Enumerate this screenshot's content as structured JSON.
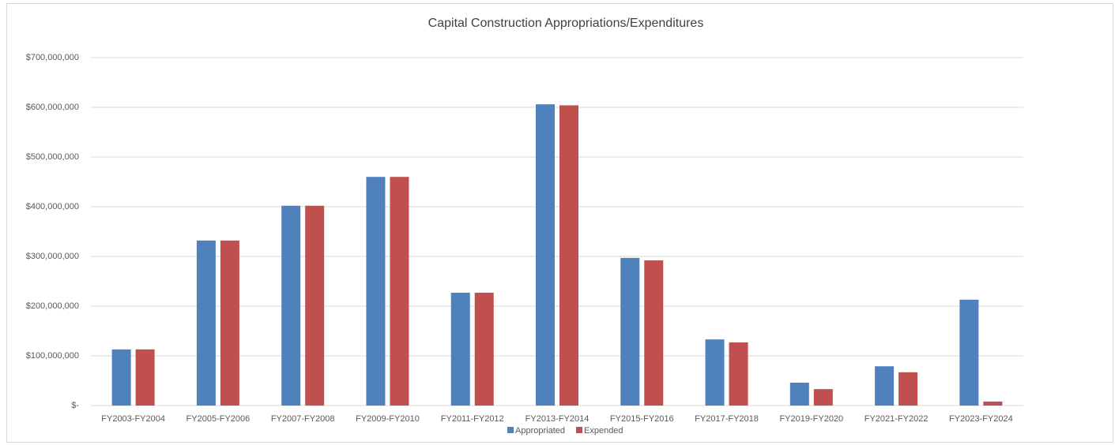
{
  "chart_data": {
    "type": "bar",
    "title": "Capital Construction Appropriations/Expenditures",
    "categories": [
      "FY2003-FY2004",
      "FY2005-FY2006",
      "FY2007-FY2008",
      "FY2009-FY2010",
      "FY2011-FY2012",
      "FY2013-FY2014",
      "FY2015-FY2016",
      "FY2017-FY2018",
      "FY2019-FY2020",
      "FY2021-FY2022",
      "FY2023-FY2024"
    ],
    "series": [
      {
        "name": "Appropriated",
        "color": "#4f81bd",
        "values": [
          113000000,
          332000000,
          402000000,
          460000000,
          227000000,
          606000000,
          297000000,
          133000000,
          46000000,
          79000000,
          213000000
        ]
      },
      {
        "name": "Expended",
        "color": "#c0504d",
        "values": [
          113000000,
          332000000,
          402000000,
          460000000,
          227000000,
          604000000,
          292000000,
          127000000,
          33000000,
          67000000,
          8000000
        ]
      }
    ],
    "ylim": [
      0,
      700000000
    ],
    "yticks": [
      {
        "value": 0,
        "label": "$-"
      },
      {
        "value": 100000000,
        "label": "$100,000,000"
      },
      {
        "value": 200000000,
        "label": "$200,000,000"
      },
      {
        "value": 300000000,
        "label": "$300,000,000"
      },
      {
        "value": 400000000,
        "label": "$400,000,000"
      },
      {
        "value": 500000000,
        "label": "$500,000,000"
      },
      {
        "value": 600000000,
        "label": "$600,000,000"
      },
      {
        "value": 700000000,
        "label": "$700,000,000"
      }
    ],
    "grid": true,
    "legend": "bottom"
  }
}
